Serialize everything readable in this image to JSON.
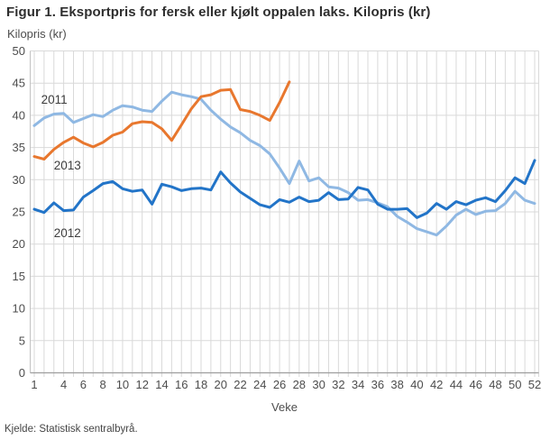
{
  "figure": {
    "title": "Figur 1. Eksportpris for fersk eller kjølt oppalen laks. Kilopris (kr)",
    "y_unit_label": "Kilopris (kr)",
    "x_axis_title": "Veke",
    "source": "Kjelde: Statistisk sentralbyrå."
  },
  "colors": {
    "grid": "#d9d9d9",
    "axis_left": "#c2c2c2",
    "axis_bottom": "#9e9e9e",
    "tick_text": "#4d4d4d",
    "series_label_text": "#3d3d3d"
  },
  "chart_data": {
    "type": "line",
    "title": "Figur 1. Eksportpris for fersk eller kjølt oppalen laks. Kilopris (kr)",
    "xlabel": "Veke",
    "ylabel": "Kilopris (kr)",
    "x_range": [
      1,
      52
    ],
    "ylim": [
      0,
      50
    ],
    "y_tick_step": 5,
    "x_tick_labels": [
      1,
      4,
      6,
      8,
      10,
      12,
      14,
      16,
      18,
      20,
      22,
      24,
      26,
      28,
      30,
      32,
      34,
      36,
      38,
      40,
      42,
      44,
      46,
      48,
      50,
      52
    ],
    "grid": true,
    "legend_position": "inline-labels",
    "series": [
      {
        "name": "2011",
        "color": "#8fb8e3",
        "start_week": 1,
        "label_pos": {
          "week": 1.7,
          "value": 41.8
        },
        "values": [
          38.4,
          39.6,
          40.2,
          40.3,
          38.9,
          39.5,
          40.1,
          39.8,
          40.8,
          41.5,
          41.3,
          40.8,
          40.6,
          42.2,
          43.6,
          43.2,
          42.9,
          42.5,
          40.8,
          39.4,
          38.2,
          37.3,
          36.1,
          35.3,
          34.0,
          31.8,
          29.4,
          32.9,
          29.8,
          30.3,
          28.9,
          28.7,
          28.0,
          26.8,
          26.9,
          26.4,
          25.8,
          24.3,
          23.4,
          22.4,
          21.9,
          21.4,
          22.8,
          24.5,
          25.4,
          24.6,
          25.1,
          25.2,
          26.3,
          28.2,
          26.8,
          26.3
        ]
      },
      {
        "name": "2013",
        "color": "#e8772e",
        "start_week": 1,
        "label_pos": {
          "week": 3.0,
          "value": 31.6
        },
        "values": [
          33.6,
          33.2,
          34.7,
          35.8,
          36.6,
          35.7,
          35.1,
          35.8,
          36.9,
          37.4,
          38.7,
          39.0,
          38.9,
          37.9,
          36.1,
          38.5,
          41.0,
          42.9,
          43.2,
          43.9,
          44.0,
          40.9,
          40.6,
          40.0,
          39.2,
          42.0,
          45.2
        ]
      },
      {
        "name": "2012",
        "color": "#2274c8",
        "start_week": 1,
        "label_pos": {
          "week": 3.0,
          "value": 21.1
        },
        "values": [
          25.4,
          24.9,
          26.4,
          25.2,
          25.3,
          27.3,
          28.3,
          29.4,
          29.7,
          28.6,
          28.2,
          28.4,
          26.2,
          29.3,
          28.9,
          28.3,
          28.6,
          28.7,
          28.4,
          31.2,
          29.5,
          28.1,
          27.1,
          26.1,
          25.7,
          26.9,
          26.5,
          27.3,
          26.6,
          26.8,
          28.0,
          26.9,
          27.0,
          28.8,
          28.4,
          26.2,
          25.4,
          25.4,
          25.5,
          24.1,
          24.8,
          26.3,
          25.4,
          26.6,
          26.1,
          26.8,
          27.2,
          26.6,
          28.3,
          30.3,
          29.4,
          33.0
        ]
      }
    ]
  }
}
